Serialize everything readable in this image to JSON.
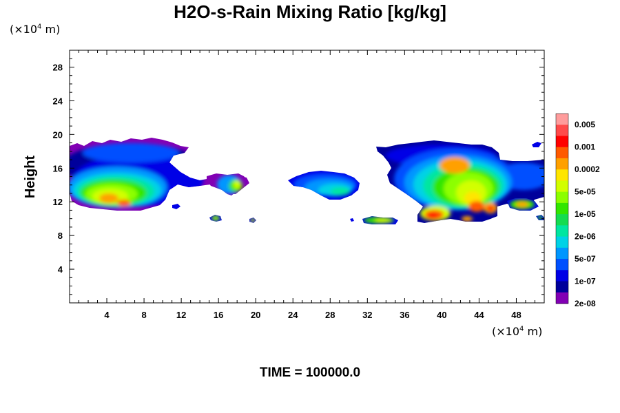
{
  "chart_data": {
    "type": "heatmap",
    "title": "H2O-s-Rain Mixing Ratio [kg/kg]",
    "ylabel": "Height",
    "xlabel": "",
    "y_unit_prefix": "(×10",
    "y_unit_exp": "4",
    "y_unit_suffix": " m)",
    "x_unit_prefix": "(×10",
    "x_unit_exp": "4",
    "x_unit_suffix": " m)",
    "xlim": [
      0,
      51
    ],
    "ylim": [
      0,
      30
    ],
    "xticks": [
      4,
      8,
      12,
      16,
      20,
      24,
      28,
      32,
      36,
      40,
      44,
      48
    ],
    "xtick_labels": [
      "4",
      "8",
      "12",
      "16",
      "20",
      "24",
      "28",
      "32",
      "36",
      "40",
      "44",
      "48"
    ],
    "yticks": [
      4,
      8,
      12,
      16,
      20,
      24,
      28
    ],
    "ytick_labels": [
      "4",
      "8",
      "12",
      "16",
      "20",
      "24",
      "28"
    ],
    "colorbar": {
      "colors": [
        "#ff9c9c",
        "#ff4a4a",
        "#ff0000",
        "#ff5a00",
        "#ffa000",
        "#ffe600",
        "#d2ff00",
        "#8cff00",
        "#32e600",
        "#14dc50",
        "#00e6a0",
        "#00d2e6",
        "#0096ff",
        "#0050ff",
        "#0000e6",
        "#00009b",
        "#8200b4"
      ],
      "labels": [
        "0.005",
        "0.001",
        "0.0002",
        "5e-05",
        "1e-05",
        "2e-06",
        "5e-07",
        "1e-07",
        "2e-08"
      ]
    },
    "fields": [
      {
        "x": [
          0,
          9
        ],
        "y": [
          14,
          17
        ],
        "level": 12
      },
      {
        "x": [
          3,
          7
        ],
        "y": [
          11.5,
          14
        ],
        "level": 9
      },
      {
        "x": [
          5,
          6
        ],
        "y": [
          12.5,
          13
        ],
        "level": 4
      },
      {
        "x": [
          17,
          19
        ],
        "y": [
          12.5,
          15
        ],
        "level": 9
      },
      {
        "x": [
          24,
          30
        ],
        "y": [
          12,
          15.5
        ],
        "level": 12
      },
      {
        "x": [
          32,
          35
        ],
        "y": [
          9.5,
          10.2
        ],
        "level": 8
      },
      {
        "x": [
          37,
          49
        ],
        "y": [
          12,
          18
        ],
        "level": 10
      },
      {
        "x": [
          38,
          41
        ],
        "y": [
          9.5,
          11
        ],
        "level": 3
      },
      {
        "x": [
          41,
          45
        ],
        "y": [
          13,
          16.5
        ],
        "level": 7
      },
      {
        "x": [
          47,
          50
        ],
        "y": [
          11.5,
          12.5
        ],
        "level": 6
      }
    ]
  },
  "footer": {
    "time_label": "TIME = 100000.0"
  }
}
